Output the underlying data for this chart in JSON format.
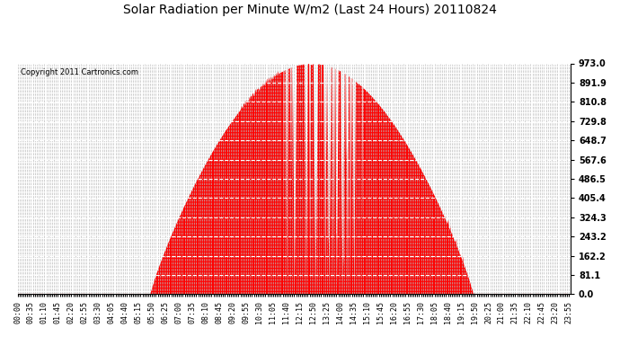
{
  "title": "Solar Radiation per Minute W/m2 (Last 24 Hours) 20110824",
  "copyright": "Copyright 2011 Cartronics.com",
  "fill_color": "#FF0000",
  "background_color": "#FFFFFF",
  "grid_color_h": "#FFFFFF",
  "grid_color_v": "#AAAAAA",
  "dashed_line_color": "#FF0000",
  "yticks": [
    0.0,
    81.1,
    162.2,
    243.2,
    324.3,
    405.4,
    486.5,
    567.6,
    648.7,
    729.8,
    810.8,
    891.9,
    973.0
  ],
  "ymax": 973.0,
  "ymin": 0.0,
  "n_minutes": 1440,
  "title_fontsize": 10,
  "copyright_fontsize": 6,
  "tick_fontsize": 6
}
